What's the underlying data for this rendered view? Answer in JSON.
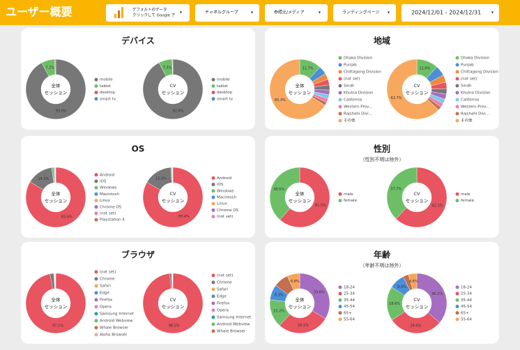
{
  "header": {
    "title": "ユーザー概要",
    "filters": [
      [
        "デフォルトのデータ",
        "クリックして Google ア"
      ],
      [
        "チャネルグループ"
      ],
      [
        "参照元/メディア"
      ],
      [
        "ランディングページ"
      ],
      [
        "2024/12/01 - 2024/12/31"
      ]
    ]
  },
  "chart_data": [
    {
      "type": "donut",
      "title": "デバイス",
      "donuts": [
        {
          "center_label": [
            "全体",
            "セッション"
          ],
          "categories": [
            "mobile",
            "tablet",
            "desktop",
            "smart tv"
          ],
          "colors": [
            "#777777",
            "#6dbf67",
            "#e8545f",
            "#4a8fd8"
          ],
          "values": [
            93.0,
            7.2,
            0.5,
            0.1
          ],
          "value_labels": [
            "93.0%",
            "7.2%",
            null,
            null
          ]
        },
        {
          "center_label": [
            "CV",
            "セッション"
          ],
          "categories": [
            "mobile",
            "tablet",
            "desktop",
            "smart tv"
          ],
          "colors": [
            "#777777",
            "#6dbf67",
            "#e8545f",
            "#4a8fd8"
          ],
          "values": [
            92.6,
            7.3,
            0.3,
            0.1
          ],
          "value_labels": [
            "92.6%",
            "7.3%",
            null,
            null
          ]
        }
      ]
    },
    {
      "type": "donut",
      "title": "地域",
      "donuts": [
        {
          "center_label": [
            "全体",
            "セッション"
          ],
          "categories": [
            "Dhaka Division",
            "Punjab",
            "Chittagong Division",
            "(not set)",
            "Sindh",
            "Khulna Division",
            "California",
            "Western Prov...",
            "Rajshahi Divi...",
            "その他"
          ],
          "colors": [
            "#6dbf67",
            "#4a8fd8",
            "#f08a3c",
            "#e8545f",
            "#777777",
            "#a66cc1",
            "#7ec8e8",
            "#e97fb0",
            "#c2704f",
            "#f7a85e"
          ],
          "values": [
            11.7,
            4.5,
            3.2,
            3.0,
            2.8,
            2.5,
            2.2,
            2.0,
            1.8,
            65.3
          ],
          "value_labels": [
            "11.7%",
            null,
            null,
            null,
            null,
            null,
            null,
            null,
            null,
            "65.3%"
          ]
        },
        {
          "center_label": [
            "CV",
            "セッション"
          ],
          "categories": [
            "Dhaka Division",
            "Punjab",
            "Chittagong Division",
            "(not set)",
            "Sindh",
            "Khulna Division",
            "California",
            "Western Prov...",
            "Rajshahi Divi...",
            "その他"
          ],
          "colors": [
            "#6dbf67",
            "#4a8fd8",
            "#f08a3c",
            "#e8545f",
            "#777777",
            "#a66cc1",
            "#7ec8e8",
            "#e97fb0",
            "#c2704f",
            "#f7a85e"
          ],
          "values": [
            11.6,
            5.5,
            4.0,
            3.5,
            3.0,
            2.8,
            2.5,
            2.2,
            1.9,
            62.7
          ],
          "value_labels": [
            "11.6%",
            null,
            null,
            null,
            null,
            null,
            null,
            null,
            null,
            "62.7%"
          ]
        }
      ]
    },
    {
      "type": "donut",
      "title": "OS",
      "donuts": [
        {
          "center_label": [
            "全体",
            "セッション"
          ],
          "categories": [
            "Android",
            "iOS",
            "Windows",
            "Macintosh",
            "Linux",
            "Chrome OS",
            "(not set)",
            "Playstation 4"
          ],
          "colors": [
            "#e8545f",
            "#777777",
            "#6dbf67",
            "#4a8fd8",
            "#f5a55a",
            "#a66cc1",
            "#e97fb0",
            "#c2704f"
          ],
          "values": [
            83.6,
            14.2,
            1.0,
            0.5,
            0.3,
            0.2,
            0.1,
            0.1
          ],
          "value_labels": [
            "83.6%",
            "14.2%",
            null,
            null,
            null,
            null,
            null,
            null
          ]
        },
        {
          "center_label": [
            "CV",
            "セッション"
          ],
          "categories": [
            "Android",
            "iOS",
            "Windows",
            "Macintosh",
            "Linux",
            "Chrome OS",
            "(not set)"
          ],
          "colors": [
            "#e8545f",
            "#777777",
            "#6dbf67",
            "#4a8fd8",
            "#f5a55a",
            "#a66cc1",
            "#e97fb0"
          ],
          "values": [
            83.4,
            15.5,
            0.5,
            0.3,
            0.1,
            0.1,
            0.1
          ],
          "value_labels": [
            "83.4%",
            "15.5%",
            null,
            null,
            null,
            null,
            null
          ]
        }
      ]
    },
    {
      "type": "donut",
      "title": "性別",
      "subtitle": "（性別不明は除外）",
      "donuts": [
        {
          "center_label": [
            "全体",
            "セッション"
          ],
          "categories": [
            "male",
            "female"
          ],
          "colors": [
            "#e8545f",
            "#6dbf67"
          ],
          "values": [
            61.5,
            38.5
          ],
          "value_labels": [
            "61.5%",
            "38.5%"
          ]
        },
        {
          "center_label": [
            "CV",
            "セッション"
          ],
          "categories": [
            "male",
            "female"
          ],
          "colors": [
            "#e8545f",
            "#6dbf67"
          ],
          "values": [
            62.3,
            37.7
          ],
          "value_labels": [
            "62.3%",
            "37.7%"
          ]
        }
      ]
    },
    {
      "type": "donut",
      "title": "ブラウザ",
      "donuts": [
        {
          "center_label": [
            "全体",
            "セッション"
          ],
          "categories": [
            "(not set)",
            "Chrome",
            "Safari",
            "Edge",
            "Firefox",
            "Opera",
            "Samsung Internet",
            "Android Webview",
            "Whale Browser",
            "Aloha Browser"
          ],
          "colors": [
            "#e8545f",
            "#777777",
            "#f5a55a",
            "#4a8fd8",
            "#a66cc1",
            "#e97fb0",
            "#2aa198",
            "#6dbf67",
            "#c2704f",
            "#f29bbf"
          ],
          "values": [
            97.1,
            2.0,
            0.3,
            0.2,
            0.1,
            0.1,
            0.1,
            0.1,
            0.1,
            0.1
          ],
          "value_labels": [
            "97.1%",
            null,
            null,
            null,
            null,
            null,
            null,
            null,
            null,
            null
          ]
        },
        {
          "center_label": [
            "CV",
            "セッション"
          ],
          "categories": [
            "(not set)",
            "Chrome",
            "Safari",
            "Edge",
            "Firefox",
            "Opera",
            "Samsung Internet",
            "Android Webview",
            "Whale Browser"
          ],
          "colors": [
            "#e8545f",
            "#777777",
            "#f5a55a",
            "#4a8fd8",
            "#a66cc1",
            "#e97fb0",
            "#2aa198",
            "#6dbf67",
            "#c2704f"
          ],
          "values": [
            98.5,
            1.0,
            0.1,
            0.1,
            0.1,
            0.1,
            0.1,
            0.1,
            0.1
          ],
          "value_labels": [
            "98.5%",
            null,
            null,
            null,
            null,
            null,
            null,
            null,
            null
          ]
        }
      ]
    },
    {
      "type": "donut",
      "title": "年齢",
      "subtitle": "（年齢不明は除外）",
      "donuts": [
        {
          "center_label": [
            "全体",
            "セッション"
          ],
          "categories": [
            "18-24",
            "25-34",
            "35-44",
            "45-54",
            "65+",
            "55-64"
          ],
          "colors": [
            "#a66cc1",
            "#e8545f",
            "#6dbf67",
            "#4a8fd8",
            "#c2704f",
            "#f5a55a"
          ],
          "values": [
            33.6,
            28.1,
            15.2,
            8.3,
            8.0,
            6.8
          ],
          "value_labels": [
            "33.6%",
            "28.1%",
            "15.2%",
            "8.3%",
            null,
            "6.8%"
          ]
        },
        {
          "center_label": [
            "CV",
            "セッション"
          ],
          "categories": [
            "18-24",
            "25-34",
            "35-44",
            "45-54",
            "65+",
            "55-64"
          ],
          "colors": [
            "#a66cc1",
            "#e8545f",
            "#6dbf67",
            "#4a8fd8",
            "#c2704f",
            "#f5a55a"
          ],
          "values": [
            36.2,
            29.4,
            18.6,
            8.3,
            3.0,
            4.6
          ],
          "value_labels": [
            "36.2%",
            "29.4%",
            "18.6%",
            "8.3%",
            null,
            "4.6%"
          ]
        }
      ]
    }
  ]
}
